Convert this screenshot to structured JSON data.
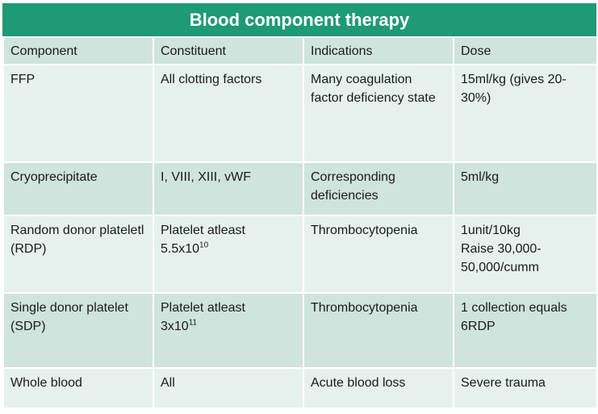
{
  "title": "Blood component therapy",
  "headers": [
    "Component",
    "Constituent",
    "Indications",
    "Dose"
  ],
  "rows": [
    {
      "component": "FFP",
      "constituent": "All clotting factors",
      "indications": "Many coagulation factor deficiency state",
      "dose": "15ml/kg (gives 20-30%)"
    },
    {
      "component": "Cryoprecipitate",
      "constituent": "I, VIII, XIII, vWF",
      "indications": "Corresponding deficiencies",
      "dose": "5ml/kg"
    },
    {
      "component": "Random donor plateletl (RDP)",
      "constituent_prefix": "Platelet atleast",
      "constituent_base": "5.5x10",
      "constituent_exp": "10",
      "indications": "Thrombocytopenia",
      "dose_line1": "1unit/10kg",
      "dose_line2": "Raise 30,000-50,000/cumm"
    },
    {
      "component": "Single donor platelet (SDP)",
      "constituent_prefix": "Platelet atleast",
      "constituent_base": "3x10",
      "constituent_exp": "11",
      "indications": "Thrombocytopenia",
      "dose": "1 collection equals 6RDP"
    },
    {
      "component": "Whole blood",
      "constituent": "All",
      "indications": "Acute blood loss",
      "dose": "Severe trauma"
    }
  ]
}
